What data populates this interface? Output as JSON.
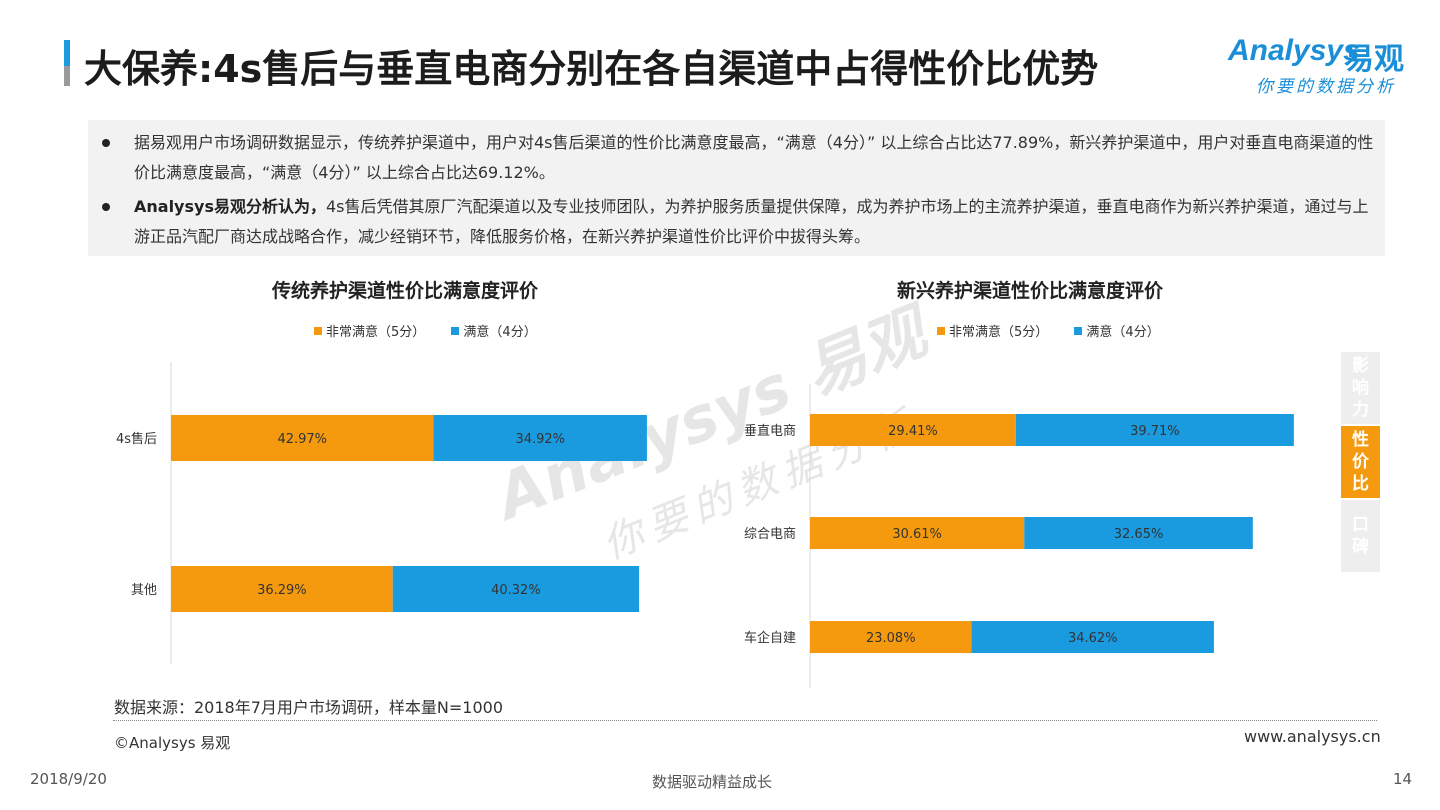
{
  "header": {
    "title": "大保养:4s售后与垂直电商分别在各自渠道中占得性价比优势",
    "logo_en": "Analysys",
    "logo_cn": "易观",
    "logo_tagline": "你要的数据分析"
  },
  "summary": {
    "bullets": [
      {
        "bold": "",
        "text": "据易观用户市场调研数据显示，传统养护渠道中，用户对4s售后渠道的性价比满意度最高，“满意（4分）” 以上综合占比达77.89%，新兴养护渠道中，用户对垂直电商渠道的性价比满意度最高，“满意（4分）” 以上综合占比达69.12%。"
      },
      {
        "bold": "Analysys易观分析认为，",
        "text": "4s售后凭借其原厂汽配渠道以及专业技师团队，为养护服务质量提供保障，成为养护市场上的主流养护渠道，垂直电商作为新兴养护渠道，通过与上游正品汽配厂商达成战略合作，减少经销环节，降低服务价格，在新兴养护渠道性价比评价中拔得头筹。"
      }
    ]
  },
  "colors": {
    "orange": "#f59a0e",
    "blue": "#1a9be0"
  },
  "chart_data": [
    {
      "type": "bar",
      "orientation": "horizontal",
      "stacked": true,
      "title": "传统养护渠道性价比满意度评价",
      "categories": [
        "4s售后",
        "其他"
      ],
      "series": [
        {
          "name": "非常满意（5分）",
          "values": [
            42.97,
            36.29
          ],
          "labels": [
            "42.97%",
            "36.29%"
          ]
        },
        {
          "name": "满意（4分）",
          "values": [
            34.92,
            40.32
          ],
          "labels": [
            "34.92%",
            "40.32%"
          ]
        }
      ],
      "xlim": [
        0,
        100
      ],
      "legend": "top"
    },
    {
      "type": "bar",
      "orientation": "horizontal",
      "stacked": true,
      "title": "新兴养护渠道性价比满意度评价",
      "categories": [
        "垂直电商",
        "综合电商",
        "车企自建"
      ],
      "series": [
        {
          "name": "非常满意（5分）",
          "values": [
            29.41,
            30.61,
            23.08
          ],
          "labels": [
            "29.41%",
            "30.61%",
            "23.08%"
          ]
        },
        {
          "name": "满意（4分）",
          "values": [
            39.71,
            32.65,
            34.62
          ],
          "labels": [
            "39.71%",
            "32.65%",
            "34.62%"
          ]
        }
      ],
      "xlim": [
        0,
        100
      ],
      "legend": "top"
    }
  ],
  "side_tabs": [
    {
      "label": "影响力",
      "active": false
    },
    {
      "label": "性价比",
      "active": true
    },
    {
      "label": "口碑",
      "active": false
    }
  ],
  "watermark": {
    "line1": "Analysys 易观",
    "line2": "你要的数据分析"
  },
  "source": "数据来源：2018年7月用户市场调研，样本量N=1000",
  "copyright": "©Analysys 易观",
  "website": "www.analysys.cn",
  "footer": {
    "date": "2018/9/20",
    "slogan": "数据驱动精益成长",
    "page": "14"
  }
}
